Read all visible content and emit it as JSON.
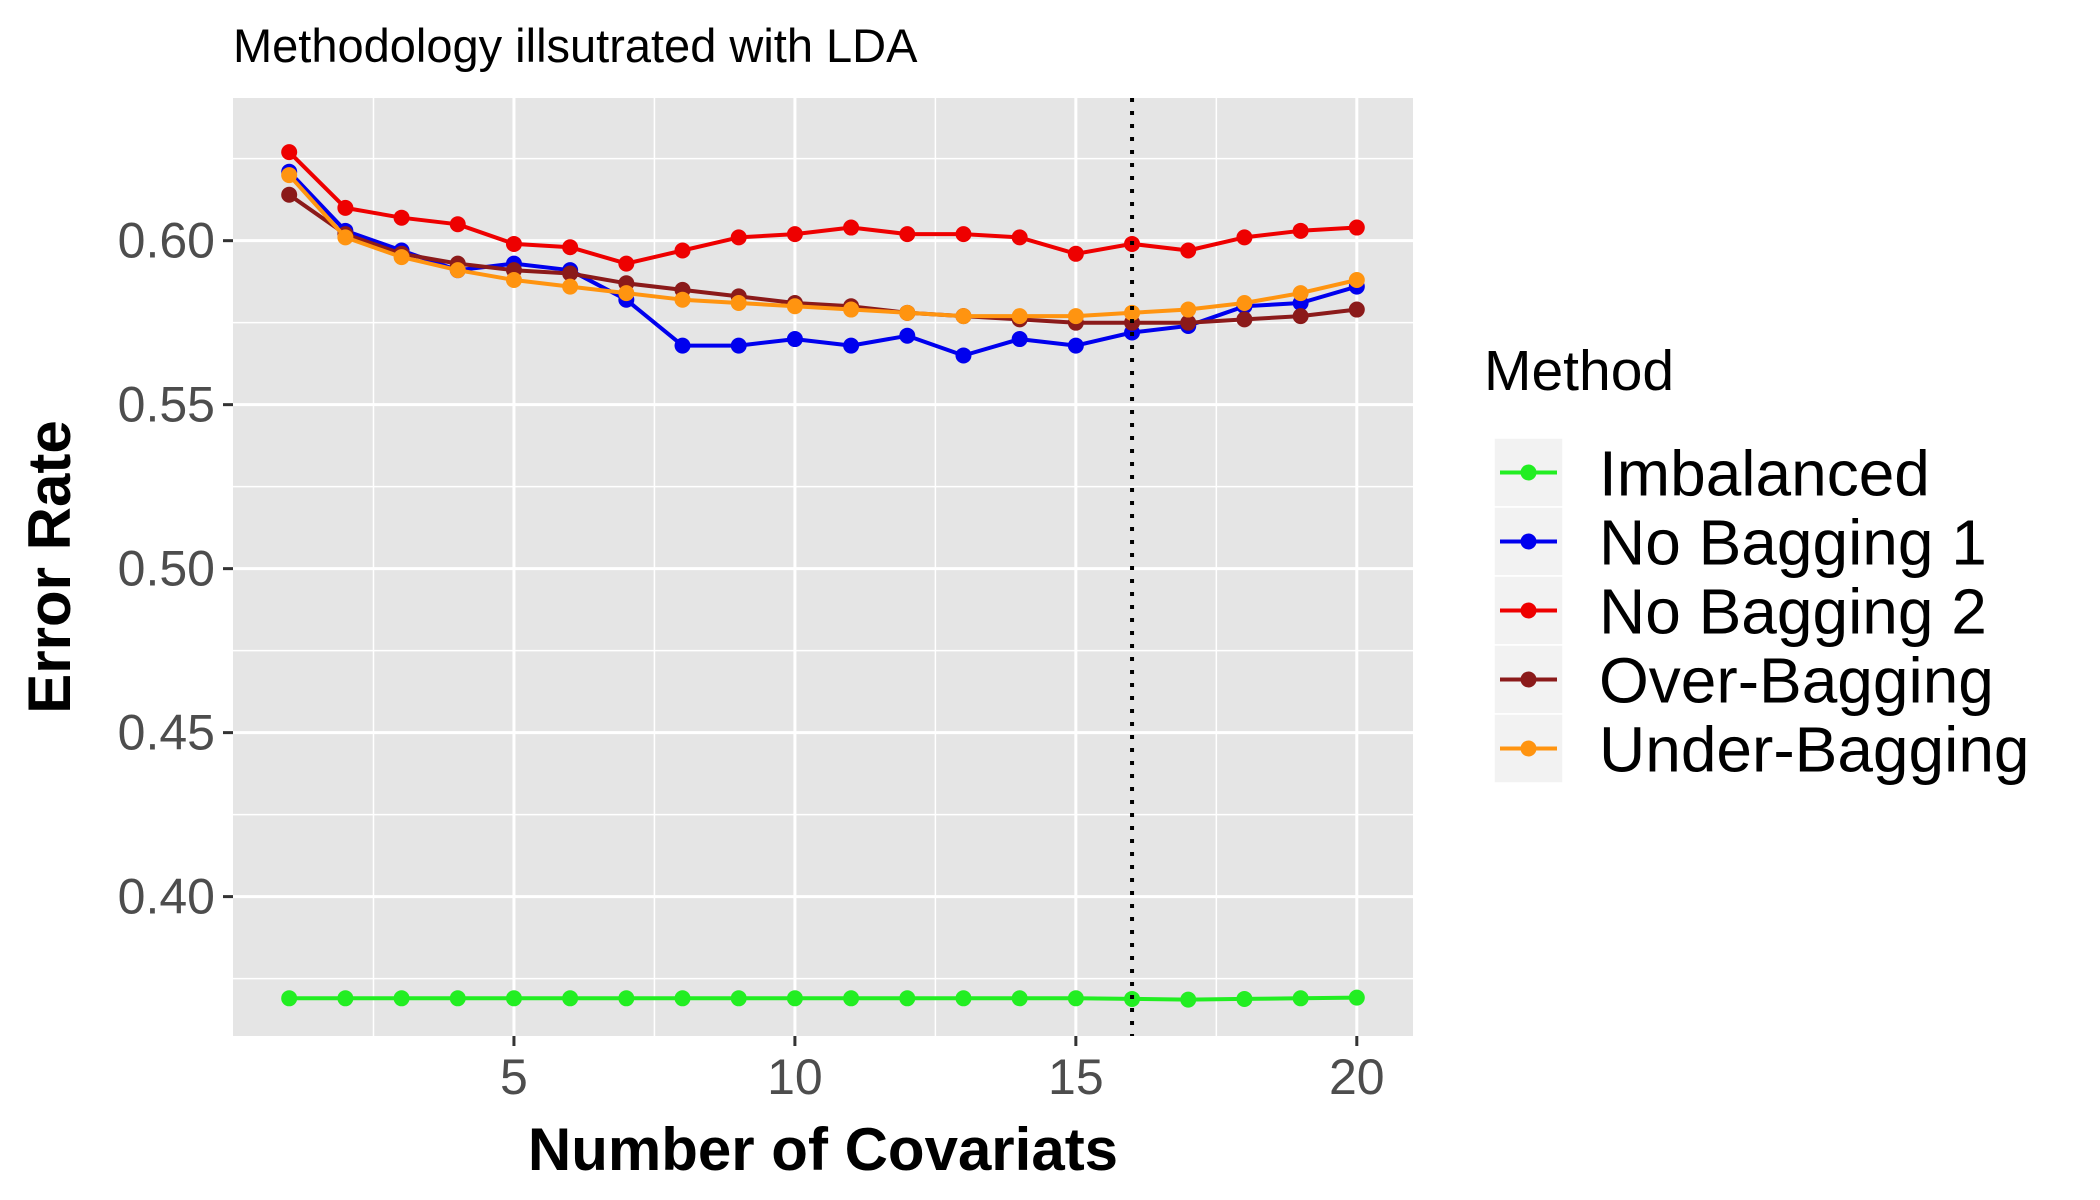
{
  "chart_data": {
    "type": "line",
    "title": "Methodology illsutrated with LDA",
    "xlabel": "Number of Covariats",
    "ylabel": "Error Rate",
    "xlim": [
      0,
      21
    ],
    "ylim": [
      0.3575,
      0.6435
    ],
    "x_ticks": [
      5,
      10,
      15,
      20
    ],
    "y_ticks": [
      0.4,
      0.45,
      0.5,
      0.55,
      0.6
    ],
    "x_tick_labels": [
      "5",
      "10",
      "15",
      "20"
    ],
    "y_tick_labels": [
      "0.40",
      "0.45",
      "0.50",
      "0.55",
      "0.60"
    ],
    "vline_x": 16,
    "grid": true,
    "legend_title": "Method",
    "legend_position": "right",
    "x": [
      1,
      2,
      3,
      4,
      5,
      6,
      7,
      8,
      9,
      10,
      11,
      12,
      13,
      14,
      15,
      16,
      17,
      18,
      19,
      20
    ],
    "series": [
      {
        "name": "Imbalanced",
        "color": "#22ee22",
        "values": [
          0.369,
          0.369,
          0.369,
          0.369,
          0.369,
          0.369,
          0.369,
          0.369,
          0.369,
          0.369,
          0.369,
          0.369,
          0.369,
          0.369,
          0.369,
          0.3688,
          0.3686,
          0.3688,
          0.369,
          0.3692
        ]
      },
      {
        "name": "No Bagging 1",
        "color": "#0000ee",
        "values": [
          0.621,
          0.603,
          0.597,
          0.591,
          0.593,
          0.591,
          0.582,
          0.568,
          0.568,
          0.57,
          0.568,
          0.571,
          0.565,
          0.57,
          0.568,
          0.572,
          0.574,
          0.58,
          0.581,
          0.586
        ]
      },
      {
        "name": "No Bagging 2",
        "color": "#ee0000",
        "values": [
          0.627,
          0.61,
          0.607,
          0.605,
          0.599,
          0.598,
          0.593,
          0.597,
          0.601,
          0.602,
          0.604,
          0.602,
          0.602,
          0.601,
          0.596,
          0.599,
          0.597,
          0.601,
          0.603,
          0.604
        ]
      },
      {
        "name": "Over-Bagging",
        "color": "#8b1a1a",
        "values": [
          0.614,
          0.602,
          0.596,
          0.593,
          0.591,
          0.59,
          0.587,
          0.585,
          0.583,
          0.581,
          0.58,
          0.578,
          0.577,
          0.576,
          0.575,
          0.575,
          0.575,
          0.576,
          0.577,
          0.579
        ]
      },
      {
        "name": "Under-Bagging",
        "color": "#ff9410",
        "values": [
          0.62,
          0.601,
          0.595,
          0.591,
          0.588,
          0.586,
          0.584,
          0.582,
          0.581,
          0.58,
          0.579,
          0.578,
          0.577,
          0.577,
          0.577,
          0.578,
          0.579,
          0.581,
          0.584,
          0.588
        ]
      }
    ]
  }
}
